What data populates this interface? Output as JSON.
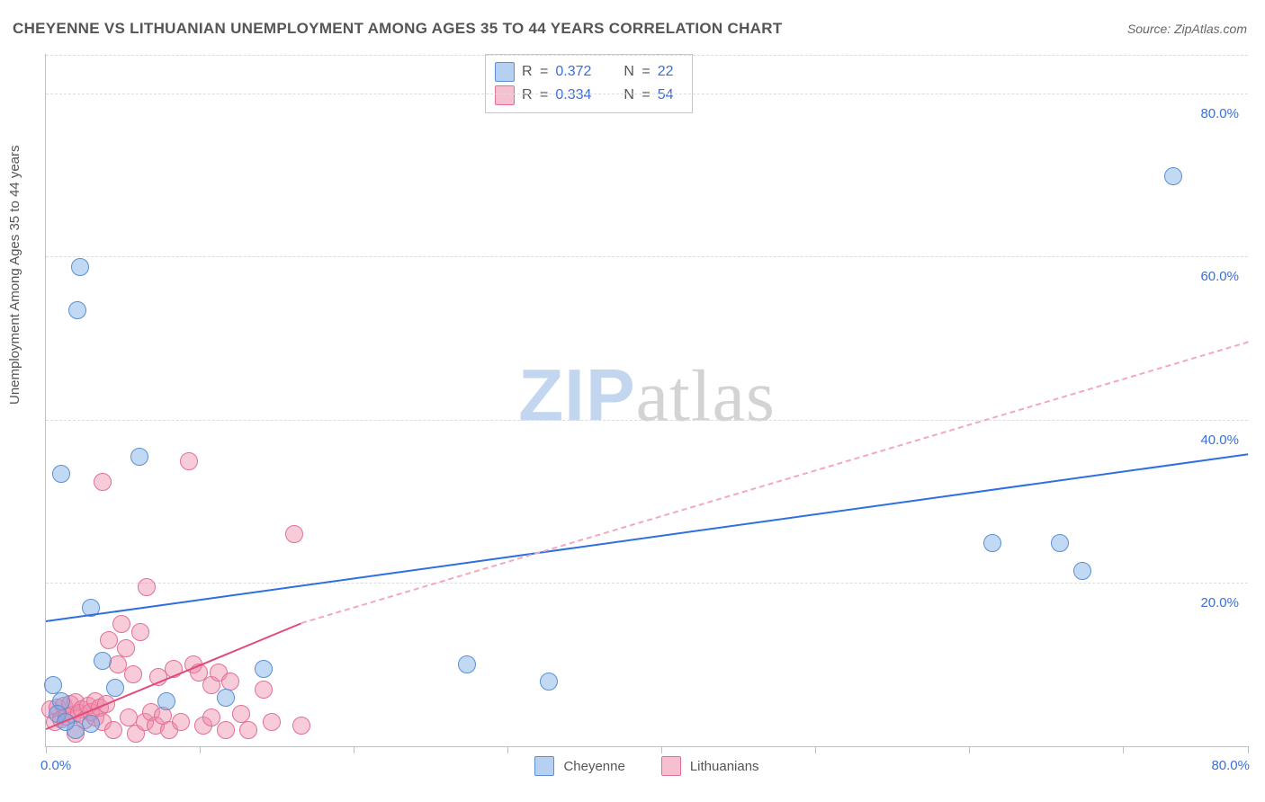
{
  "title": "CHEYENNE VS LITHUANIAN UNEMPLOYMENT AMONG AGES 35 TO 44 YEARS CORRELATION CHART",
  "source": "Source: ZipAtlas.com",
  "y_axis_label": "Unemployment Among Ages 35 to 44 years",
  "watermark": {
    "part1": "ZIP",
    "part2": "atlas"
  },
  "chart": {
    "type": "scatter",
    "xlim": [
      0,
      80
    ],
    "ylim": [
      0,
      85
    ],
    "x_tick_positions_pct": [
      0,
      12.8,
      25.6,
      38.4,
      51.2,
      64.0,
      76.8,
      89.6,
      100
    ],
    "x_origin_label": "0.0%",
    "x_max_label": "80.0%",
    "y_ticks": [
      {
        "v": 20,
        "label": "20.0%"
      },
      {
        "v": 40,
        "label": "40.0%"
      },
      {
        "v": 60,
        "label": "60.0%"
      },
      {
        "v": 80,
        "label": "80.0%"
      }
    ],
    "grid_color": "#dcdcdc",
    "axis_color": "#bfbfbf",
    "background_color": "#ffffff",
    "series": {
      "blue": {
        "label": "Cheyenne",
        "fill": "rgba(120,170,230,0.45)",
        "stroke": "#5b8fd6",
        "R": "0.372",
        "N": "22",
        "trend": {
          "x1": 0,
          "y1": 15.2,
          "x2": 80,
          "y2": 35.7,
          "color": "#2f6fe0",
          "width": 2.5,
          "dash": "solid"
        },
        "points": [
          {
            "x": 0.5,
            "y": 7.5
          },
          {
            "x": 1.0,
            "y": 5.5
          },
          {
            "x": 2.3,
            "y": 58.8
          },
          {
            "x": 2.1,
            "y": 53.5
          },
          {
            "x": 1.0,
            "y": 33.5
          },
          {
            "x": 3.0,
            "y": 17.0
          },
          {
            "x": 6.2,
            "y": 35.5
          },
          {
            "x": 3.8,
            "y": 10.5
          },
          {
            "x": 3.0,
            "y": 2.8
          },
          {
            "x": 4.6,
            "y": 7.2
          },
          {
            "x": 0.8,
            "y": 4.0
          },
          {
            "x": 8.0,
            "y": 5.5
          },
          {
            "x": 12.0,
            "y": 6.0
          },
          {
            "x": 14.5,
            "y": 9.5
          },
          {
            "x": 28.0,
            "y": 10.0
          },
          {
            "x": 33.5,
            "y": 8.0
          },
          {
            "x": 63.0,
            "y": 25.0
          },
          {
            "x": 67.5,
            "y": 25.0
          },
          {
            "x": 69.0,
            "y": 21.5
          },
          {
            "x": 75.0,
            "y": 70.0
          },
          {
            "x": 2.0,
            "y": 2.0
          },
          {
            "x": 1.3,
            "y": 3.0
          }
        ]
      },
      "pink": {
        "label": "Lithuanians",
        "fill": "rgba(240,140,170,0.45)",
        "stroke": "#e27095",
        "R": "0.334",
        "N": "54",
        "trend_solid": {
          "x1": 0,
          "y1": 2.0,
          "x2": 17,
          "y2": 15.0,
          "color": "#e04b7b",
          "width": 2.5
        },
        "trend_dash": {
          "x1": 17,
          "y1": 15.0,
          "x2": 80,
          "y2": 49.5,
          "color": "#f2a8bf",
          "width": 2,
          "dash": "6,5"
        },
        "points": [
          {
            "x": 0.3,
            "y": 4.5
          },
          {
            "x": 0.6,
            "y": 3.0
          },
          {
            "x": 0.8,
            "y": 4.8
          },
          {
            "x": 1.0,
            "y": 3.3
          },
          {
            "x": 1.2,
            "y": 5.0
          },
          {
            "x": 1.4,
            "y": 3.6
          },
          {
            "x": 1.6,
            "y": 5.2
          },
          {
            "x": 1.8,
            "y": 3.9
          },
          {
            "x": 2.0,
            "y": 5.4
          },
          {
            "x": 2.2,
            "y": 4.1
          },
          {
            "x": 2.4,
            "y": 4.5
          },
          {
            "x": 2.6,
            "y": 3.2
          },
          {
            "x": 2.8,
            "y": 5.0
          },
          {
            "x": 3.0,
            "y": 4.2
          },
          {
            "x": 3.3,
            "y": 3.5
          },
          {
            "x": 3.3,
            "y": 5.5
          },
          {
            "x": 3.6,
            "y": 4.8
          },
          {
            "x": 3.8,
            "y": 3.0
          },
          {
            "x": 4.0,
            "y": 5.2
          },
          {
            "x": 4.2,
            "y": 13.0
          },
          {
            "x": 4.5,
            "y": 2.0
          },
          {
            "x": 4.8,
            "y": 10.0
          },
          {
            "x": 5.0,
            "y": 15.0
          },
          {
            "x": 5.3,
            "y": 12.0
          },
          {
            "x": 5.5,
            "y": 3.5
          },
          {
            "x": 5.8,
            "y": 8.8
          },
          {
            "x": 6.0,
            "y": 1.5
          },
          {
            "x": 6.3,
            "y": 14.0
          },
          {
            "x": 6.6,
            "y": 3.0
          },
          {
            "x": 6.7,
            "y": 19.5
          },
          {
            "x": 7.0,
            "y": 4.2
          },
          {
            "x": 7.3,
            "y": 2.5
          },
          {
            "x": 7.5,
            "y": 8.5
          },
          {
            "x": 7.8,
            "y": 3.8
          },
          {
            "x": 8.2,
            "y": 2.0
          },
          {
            "x": 8.5,
            "y": 9.5
          },
          {
            "x": 9.0,
            "y": 3.0
          },
          {
            "x": 9.5,
            "y": 35.0
          },
          {
            "x": 3.8,
            "y": 32.5
          },
          {
            "x": 9.8,
            "y": 10.0
          },
          {
            "x": 10.2,
            "y": 9.0
          },
          {
            "x": 10.5,
            "y": 2.5
          },
          {
            "x": 11.0,
            "y": 7.5
          },
          {
            "x": 11.0,
            "y": 3.5
          },
          {
            "x": 11.5,
            "y": 9.0
          },
          {
            "x": 12.0,
            "y": 2.0
          },
          {
            "x": 12.3,
            "y": 8.0
          },
          {
            "x": 13.0,
            "y": 4.0
          },
          {
            "x": 13.5,
            "y": 2.0
          },
          {
            "x": 14.5,
            "y": 7.0
          },
          {
            "x": 15.0,
            "y": 3.0
          },
          {
            "x": 16.5,
            "y": 26.0
          },
          {
            "x": 17.0,
            "y": 2.5
          },
          {
            "x": 2.0,
            "y": 1.5
          }
        ]
      }
    }
  },
  "legend_bottom": [
    {
      "swatch": "blue",
      "label": "Cheyenne"
    },
    {
      "swatch": "pink",
      "label": "Lithuanians"
    }
  ]
}
